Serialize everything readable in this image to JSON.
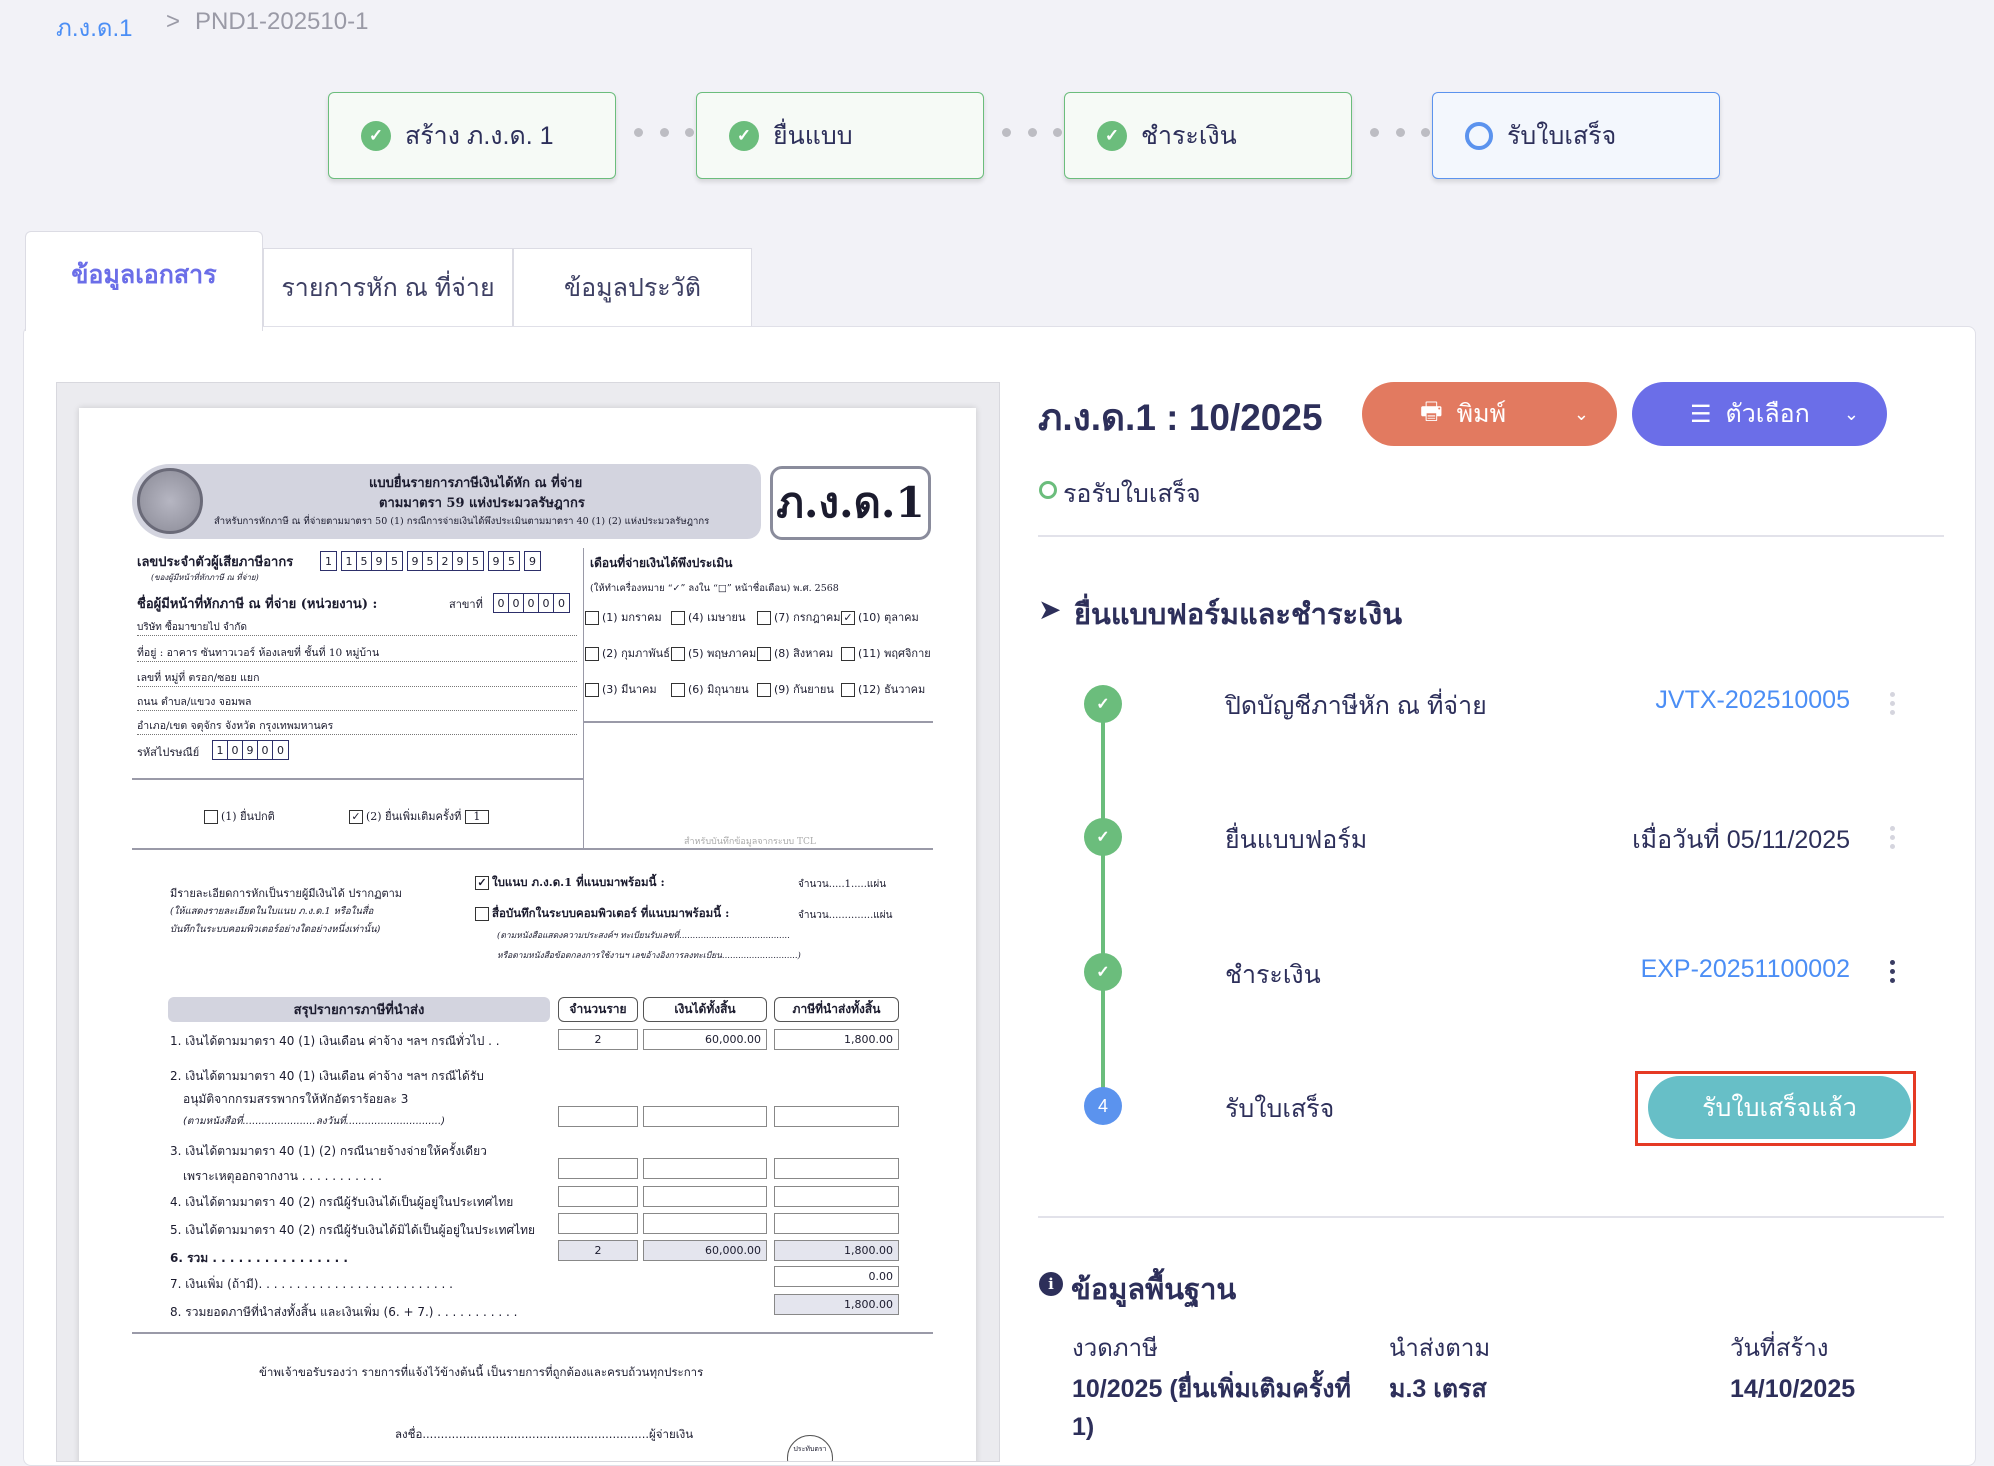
{
  "breadcrumb": {
    "root": "ภ.ง.ด.1",
    "separator": ">",
    "current": "PND1-202510-1"
  },
  "steps": [
    {
      "label": "สร้าง ภ.ง.ด. 1",
      "status": "done"
    },
    {
      "label": "ยื่นแบบ",
      "status": "done"
    },
    {
      "label": "ชำระเงิน",
      "status": "done"
    },
    {
      "label": "รับใบเสร็จ",
      "status": "current"
    }
  ],
  "tabs": [
    {
      "label": "ข้อมูลเอกสาร",
      "active": true
    },
    {
      "label": "รายการหัก ณ ที่จ่าย",
      "active": false
    },
    {
      "label": "ข้อมูลประวัติ",
      "active": false
    }
  ],
  "document": {
    "header_line1": "แบบยื่นรายการภาษีเงินได้หัก ณ ที่จ่าย",
    "header_line2": "ตามมาตรา 59 แห่งประมวลรัษฎากร",
    "header_line3": "สำหรับการหักภาษี ณ ที่จ่ายตามมาตรา 50 (1) กรณีการจ่ายเงินได้พึงประเมินตามมาตรา 40 (1) (2) แห่งประมวลรัษฎากร",
    "form_code": "ภ.ง.ด.1",
    "tin_label": "เลขประจำตัวผู้เสียภาษีอากร",
    "tin_sub": "(ของผู้มีหน้าที่หักภาษี ณ ที่จ่าย)",
    "tin_groups": [
      "1",
      "1595",
      "95295",
      "95",
      "9"
    ],
    "name_label": "ชื่อผู้มีหน้าที่หักภาษี ณ ที่จ่าย (หน่วยงาน) :",
    "branch_label": "สาขาที่",
    "branch": [
      "00000"
    ],
    "company": "บริษัท ซื้อมาขายไป จำกัด",
    "addr1": "ที่อยู่ : อาคาร ซันทาวเวอร์ ห้องเลขที่ ชั้นที่ 10 หมู่บ้าน",
    "addr2": "เลขที่ หมู่ที่ ตรอก/ซอย แยก",
    "addr3": "ถนน ตำบล/แขวง จอมพล",
    "addr4": "อำเภอ/เขต จตุจักร จังหวัด กรุงเทพมหานคร",
    "postal_label": "รหัสไปรษณีย์",
    "postal": [
      "10900"
    ],
    "month_title": "เดือนที่จ่ายเงินได้พึงประเมิน",
    "month_instr": "(ให้ทำเครื่องหมาย “✓” ลงใน “□” หน้าชื่อเดือน) พ.ศ. 2568",
    "months": [
      {
        "label": "(1) มกราคม",
        "checked": false
      },
      {
        "label": "(2) กุมภาพันธ์",
        "checked": false
      },
      {
        "label": "(3) มีนาคม",
        "checked": false
      },
      {
        "label": "(4) เมษายน",
        "checked": false
      },
      {
        "label": "(5) พฤษภาคม",
        "checked": false
      },
      {
        "label": "(6) มิถุนายน",
        "checked": false
      },
      {
        "label": "(7) กรกฎาคม",
        "checked": false
      },
      {
        "label": "(8) สิงหาคม",
        "checked": false
      },
      {
        "label": "(9) กันยายน",
        "checked": false
      },
      {
        "label": "(10) ตุลาคม",
        "checked": true
      },
      {
        "label": "(11) พฤศจิกายน",
        "checked": false
      },
      {
        "label": "(12) ธันวาคม",
        "checked": false
      }
    ],
    "filing_normal": "(1) ยื่นปกติ",
    "filing_additional": "(2)  ยื่นเพิ่มเติมครั้งที่",
    "filing_additional_no": "1",
    "tcl_note": "สำหรับบันทึกข้อมูลจากระบบ TCL",
    "attach_left1": "มีรายละเอียดการหักเป็นรายผู้มีเงินได้ ปรากฏตาม",
    "attach_left2": "(ให้แสดงรายละเอียดในใบแนบ ภ.ง.ด.1 หรือในสื่อ",
    "attach_left3": "บันทึกในระบบคอมพิวเตอร์อย่างใดอย่างหนึ่งเท่านั้น)",
    "attach1": "ใบแนบ ภ.ง.ด.1 ที่แนบมาพร้อมนี้ :",
    "attach1_count": "จำนวน.....1.....แผ่น",
    "attach2": "สื่อบันทึกในระบบคอมพิวเตอร์ ที่แนบมาพร้อมนี้ :",
    "attach2_count": "จำนวน..............แผ่น",
    "attach_note1": "(ตามหนังสือแสดงความประสงค์ฯ ทะเบียนรับเลขที่.........................................",
    "attach_note2": "หรือตามหนังสือข้อตกลงการใช้งานฯ เลขอ้างอิงการลงทะเบียน............................)",
    "summary_title": "สรุปรายการภาษีที่นำส่ง",
    "col_count": "จำนวนราย",
    "col_income": "เงินได้ทั้งสิ้น",
    "col_tax": "ภาษีที่นำส่งทั้งสิ้น",
    "rows": [
      {
        "label": "1. เงินได้ตามมาตรา 40 (1) เงินเดือน ค่าจ้าง ฯลฯ กรณีทั่วไป  . .",
        "count": "2",
        "income": "60,000.00",
        "tax": "1,800.00"
      },
      {
        "label": "2. เงินได้ตามมาตรา 40 (1) เงินเดือน ค่าจ้าง ฯลฯ กรณีได้รับ",
        "label2": "อนุมัติจากกรมสรรพากรให้หักอัตราร้อยละ 3",
        "label3": "(ตามหนังสือที่.......................ลงวันที่..............................)",
        "count": "",
        "income": "",
        "tax": ""
      },
      {
        "label": "3. เงินได้ตามมาตรา 40 (1) (2) กรณีนายจ้างจ่ายให้ครั้งเดียว",
        "label2": "เพราะเหตุออกจากงาน  . . . . . . . . . . .",
        "count": "",
        "income": "",
        "tax": ""
      },
      {
        "label": "4. เงินได้ตามมาตรา 40 (2) กรณีผู้รับเงินได้เป็นผู้อยู่ในประเทศไทย",
        "count": "",
        "income": "",
        "tax": ""
      },
      {
        "label": "5. เงินได้ตามมาตรา 40 (2) กรณีผู้รับเงินได้มิได้เป็นผู้อยู่ในประเทศไทย",
        "count": "",
        "income": "",
        "tax": ""
      },
      {
        "label": "6. รวม  . . . . . . . . . . . . . . . .",
        "count": "2",
        "income": "60,000.00",
        "tax": "1,800.00"
      },
      {
        "label": "7. เงินเพิ่ม (ถ้ามี). . . . . . . . . . . . . . . . . . . . . . . . . .",
        "tax": "0.00"
      },
      {
        "label": "8. รวมยอดภาษีที่นำส่งทั้งสิ้น และเงินเพิ่ม (6. + 7.)  . . . . . . . . . . .",
        "tax": "1,800.00"
      }
    ],
    "certify": "ข้าพเจ้าขอรับรองว่า รายการที่แจ้งไว้ข้างต้นนี้ เป็นรายการที่ถูกต้องและครบถ้วนทุกประการ",
    "sign": "ลงชื่อ..............................................................ผู้จ่ายเงิน",
    "stamp": "ประทับตรา"
  },
  "panel": {
    "title": "ภ.ง.ด.1 : 10/2025",
    "print_label": "พิมพ์",
    "options_label": "ตัวเลือก",
    "status": "รอรับใบเสร็จ",
    "section_title": "ยื่นแบบฟอร์มและชำระเงิน",
    "timeline": [
      {
        "label": "ปิดบัญชีภาษีหัก ณ ที่จ่าย",
        "value": "JVTX-202510005",
        "status": "done"
      },
      {
        "label": "ยื่นแบบฟอร์ม",
        "value": "เมื่อวันที่ 05/11/2025",
        "status": "done"
      },
      {
        "label": "ชำระเงิน",
        "value": "EXP-20251100002",
        "status": "done"
      },
      {
        "label": "รับใบเสร็จ",
        "step_number": "4",
        "action": "รับใบเสร็จแล้ว",
        "status": "current"
      }
    ],
    "info_title": "ข้อมูลพื้นฐาน",
    "info": [
      {
        "label": "งวดภาษี",
        "value": "10/2025 (ยื่นเพิ่มเติมครั้งที่ 1)"
      },
      {
        "label": "นำส่งตาม",
        "value": "ม.3 เตรส"
      },
      {
        "label": "วันที่สร้าง",
        "value": "14/10/2025"
      }
    ]
  },
  "colors": {
    "done": "#6bbd7c",
    "current": "#5b93ee",
    "print": "#e27a60",
    "options": "#6b6ee8",
    "action": "#67bfc7",
    "highlight": "#e53a24",
    "link": "#4b8ef5"
  }
}
